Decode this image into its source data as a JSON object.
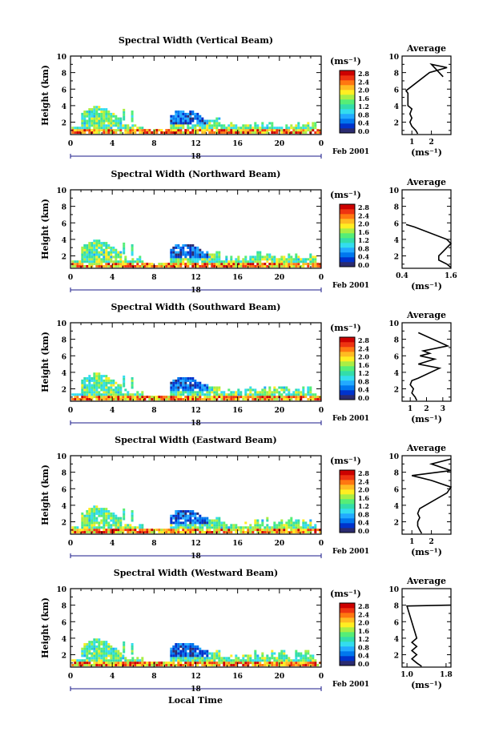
{
  "page": {
    "background": "#ffffff",
    "xlabel": "Local Time",
    "date_label": "Feb 2001",
    "day_label": "18"
  },
  "colorbar": {
    "unit": "(ms⁻¹)",
    "ticks": [
      "2.8",
      "2.4",
      "2.0",
      "1.6",
      "1.2",
      "0.8",
      "0.4",
      "0.0"
    ],
    "colors": [
      "#2b2b70",
      "#0033cc",
      "#0077ee",
      "#22aaff",
      "#33ddee",
      "#33ddaa",
      "#55ee77",
      "#aaee44",
      "#ffee22",
      "#ffbb22",
      "#ff7711",
      "#ee3311",
      "#cc0000"
    ]
  },
  "chart_data": [
    {
      "type": "heatmap",
      "title": "Spectral Width (Vertical Beam)",
      "xlabel": "Local Time",
      "ylabel": "Height (km)",
      "xlim": [
        0,
        24
      ],
      "ylim": [
        0.5,
        10
      ],
      "xticks": [
        "0",
        "4",
        "8",
        "12",
        "16",
        "20",
        "0"
      ],
      "yticks": [
        "2",
        "4",
        "6",
        "8",
        "10"
      ],
      "average": {
        "title": "Average",
        "xlabel": "(ms⁻¹)",
        "xlim": [
          0.5,
          3
        ],
        "xticks": [
          "1",
          "2"
        ],
        "profile": [
          [
            1.3,
            0.6
          ],
          [
            1.2,
            1.0
          ],
          [
            1.0,
            1.5
          ],
          [
            0.9,
            2.0
          ],
          [
            1.0,
            2.5
          ],
          [
            0.9,
            3.0
          ],
          [
            1.0,
            3.6
          ],
          [
            0.8,
            4.0
          ],
          [
            0.8,
            5.5
          ],
          [
            0.7,
            5.8
          ],
          [
            1.9,
            8.0
          ],
          [
            2.8,
            8.6
          ],
          [
            2.0,
            9.0
          ],
          [
            2.6,
            7.5
          ]
        ]
      }
    },
    {
      "type": "heatmap",
      "title": "Spectral Width (Northward Beam)",
      "xlabel": "Local Time",
      "ylabel": "Height (km)",
      "xlim": [
        0,
        24
      ],
      "ylim": [
        0.5,
        10
      ],
      "xticks": [
        "0",
        "4",
        "8",
        "12",
        "16",
        "20",
        "0"
      ],
      "yticks": [
        "2",
        "4",
        "6",
        "8",
        "10"
      ],
      "average": {
        "title": "Average",
        "xlabel": "(ms⁻¹)",
        "xlim": [
          0.4,
          1.6
        ],
        "xticks": [
          "0.4",
          "1.6"
        ],
        "profile": [
          [
            1.6,
            0.6
          ],
          [
            1.5,
            1.0
          ],
          [
            1.3,
            1.5
          ],
          [
            1.3,
            2.0
          ],
          [
            1.4,
            2.5
          ],
          [
            1.5,
            3.0
          ],
          [
            1.6,
            3.5
          ],
          [
            1.5,
            4.0
          ],
          [
            0.7,
            5.5
          ],
          [
            0.5,
            5.8
          ]
        ]
      }
    },
    {
      "type": "heatmap",
      "title": "Spectral Width (Southward Beam)",
      "xlabel": "Local Time",
      "ylabel": "Height (km)",
      "xlim": [
        0,
        24
      ],
      "ylim": [
        0.5,
        10
      ],
      "xticks": [
        "0",
        "4",
        "8",
        "12",
        "16",
        "20",
        "0"
      ],
      "yticks": [
        "2",
        "4",
        "6",
        "8",
        "10"
      ],
      "average": {
        "title": "Average",
        "xlabel": "(ms⁻¹)",
        "xlim": [
          0.5,
          3.5
        ],
        "xticks": [
          "1",
          "2",
          "3"
        ],
        "profile": [
          [
            1.4,
            0.6
          ],
          [
            1.3,
            1.0
          ],
          [
            1.1,
            1.5
          ],
          [
            1.2,
            2.0
          ],
          [
            1.0,
            2.5
          ],
          [
            1.1,
            3.0
          ],
          [
            1.5,
            3.3
          ],
          [
            2.8,
            4.5
          ],
          [
            1.5,
            5.0
          ],
          [
            2.5,
            5.6
          ],
          [
            1.6,
            6.0
          ],
          [
            2.2,
            6.3
          ],
          [
            1.8,
            6.6
          ],
          [
            3.3,
            7.2
          ],
          [
            1.5,
            8.8
          ]
        ]
      }
    },
    {
      "type": "heatmap",
      "title": "Spectral Width (Eastward Beam)",
      "xlabel": "Local Time",
      "ylabel": "Height (km)",
      "xlim": [
        0,
        24
      ],
      "ylim": [
        0.5,
        10
      ],
      "xticks": [
        "0",
        "4",
        "8",
        "12",
        "16",
        "20",
        "0"
      ],
      "yticks": [
        "2",
        "4",
        "6",
        "8",
        "10"
      ],
      "average": {
        "title": "Average",
        "xlabel": "(ms⁻¹)",
        "xlim": [
          0.5,
          3
        ],
        "xticks": [
          "1",
          "2"
        ],
        "profile": [
          [
            1.5,
            0.6
          ],
          [
            1.4,
            1.0
          ],
          [
            1.3,
            1.5
          ],
          [
            1.3,
            2.0
          ],
          [
            1.4,
            2.5
          ],
          [
            1.3,
            3.0
          ],
          [
            1.4,
            3.6
          ],
          [
            2.8,
            5.5
          ],
          [
            3.0,
            6.2
          ],
          [
            2.0,
            7.0
          ],
          [
            1.0,
            7.6
          ],
          [
            3.0,
            8.2
          ],
          [
            2.0,
            9.0
          ],
          [
            3.0,
            9.6
          ]
        ]
      }
    },
    {
      "type": "heatmap",
      "title": "Spectral Width (Westward Beam)",
      "xlabel": "Local Time",
      "ylabel": "Height (km)",
      "xlim": [
        0,
        24
      ],
      "ylim": [
        0.5,
        10
      ],
      "xticks": [
        "0",
        "4",
        "8",
        "12",
        "16",
        "20",
        "0"
      ],
      "yticks": [
        "2",
        "4",
        "6",
        "8",
        "10"
      ],
      "average": {
        "title": "Average",
        "xlabel": "(ms⁻¹)",
        "xlim": [
          0.9,
          1.9
        ],
        "xticks": [
          "1.0",
          "1.8"
        ],
        "profile": [
          [
            1.3,
            0.6
          ],
          [
            1.2,
            1.0
          ],
          [
            1.1,
            1.5
          ],
          [
            1.2,
            2.0
          ],
          [
            1.1,
            2.5
          ],
          [
            1.2,
            3.0
          ],
          [
            1.1,
            3.5
          ],
          [
            1.2,
            4.0
          ],
          [
            1.0,
            7.9
          ],
          [
            1.9,
            8.0
          ]
        ]
      }
    }
  ]
}
